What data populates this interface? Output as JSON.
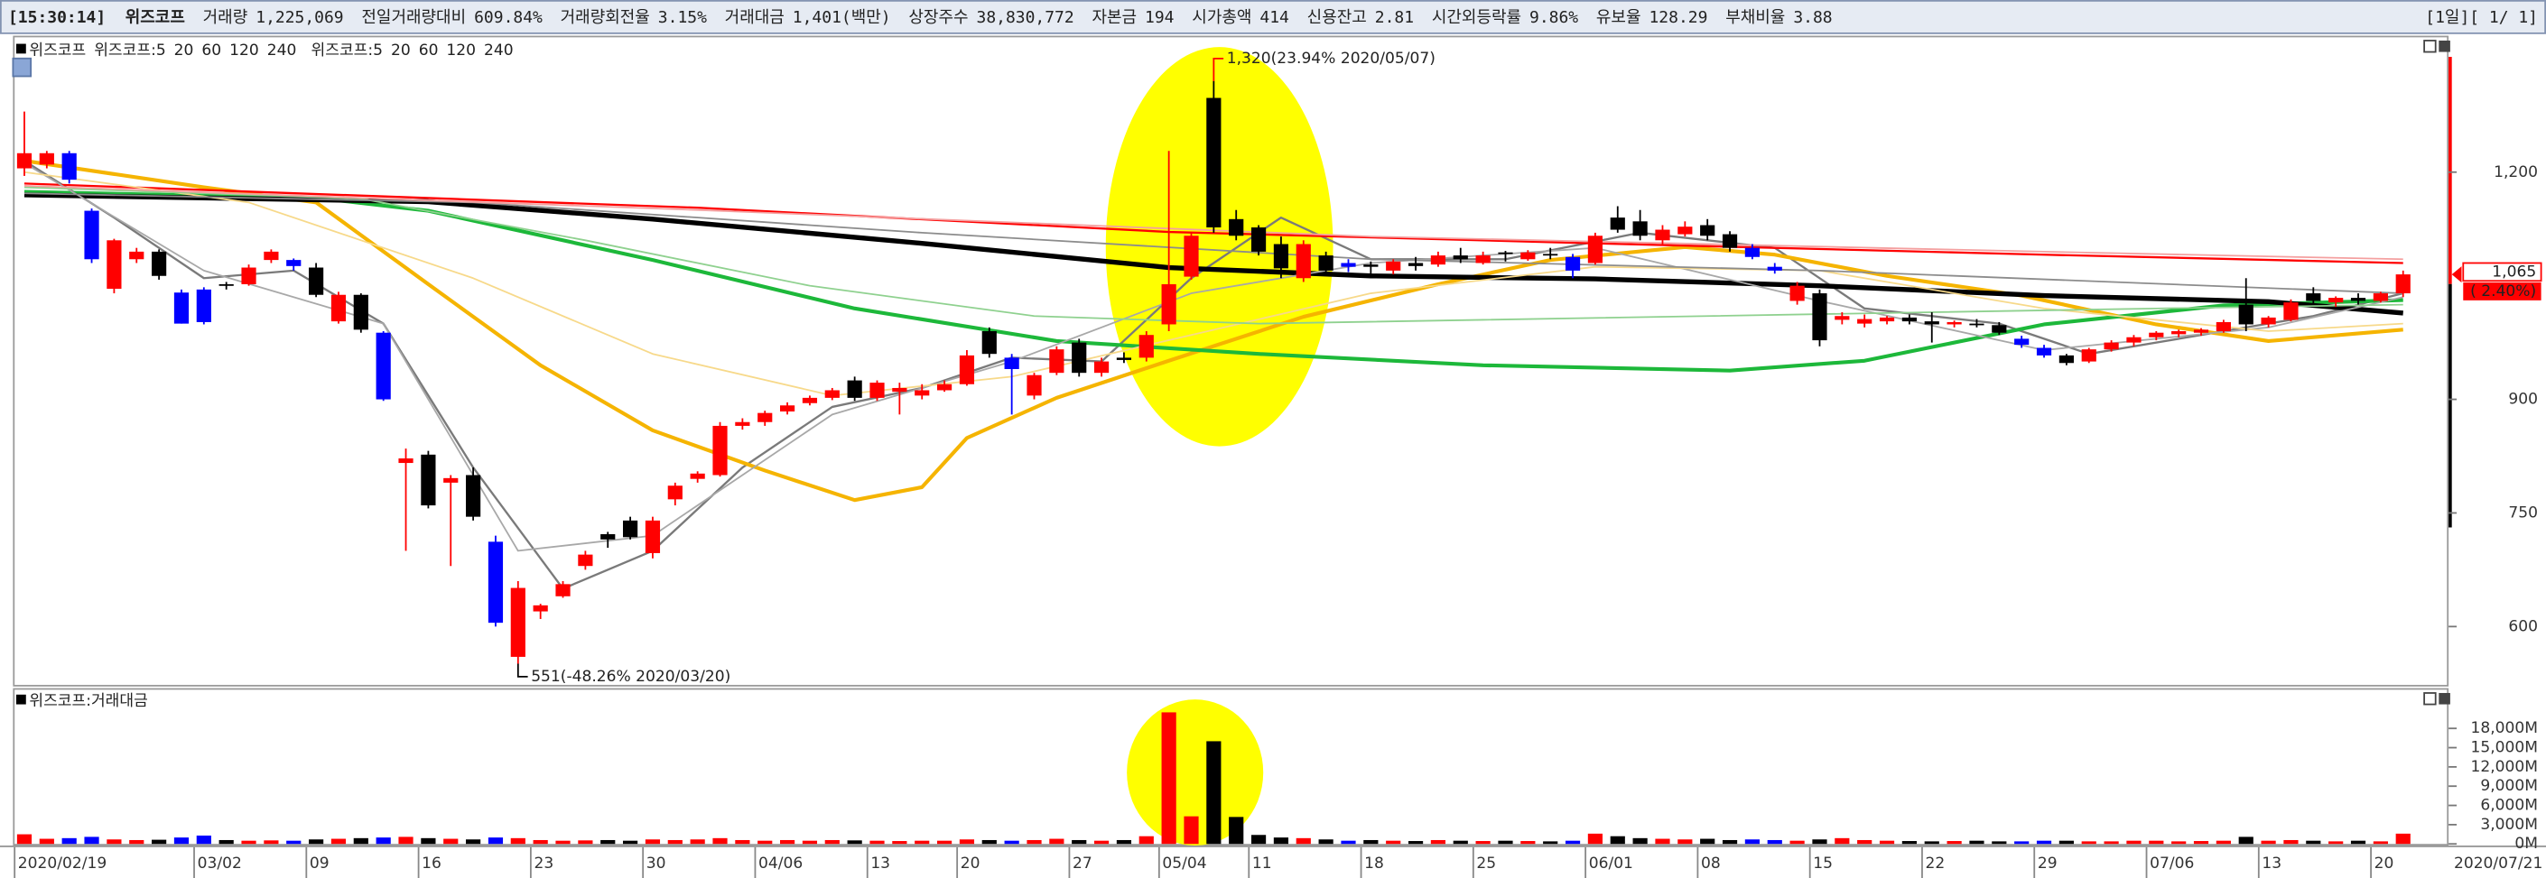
{
  "header": {
    "time": "[15:30:14]",
    "name": "위즈코프",
    "page": "[1일][ 1/ 1]",
    "items": [
      {
        "label": "거래량",
        "value": "1,225,069"
      },
      {
        "label": "전일거래량대비",
        "value": "609.84%"
      },
      {
        "label": "거래량회전율",
        "value": "3.15%"
      },
      {
        "label": "거래대금",
        "value": "1,401(백만)"
      },
      {
        "label": "상장주수",
        "value": "38,830,772"
      },
      {
        "label": "자본금",
        "value": "194"
      },
      {
        "label": "시가총액",
        "value": "414"
      },
      {
        "label": "신용잔고",
        "value": "2.81"
      },
      {
        "label": "시간외등락률",
        "value": "9.86%"
      },
      {
        "label": "유보율",
        "value": "128.29"
      },
      {
        "label": "부채비율",
        "value": "3.88"
      }
    ]
  },
  "chart_data": [
    {
      "type": "candlestick",
      "name": "위즈코프",
      "categories": [
        "2020/02/19",
        null,
        null,
        null,
        null,
        null,
        null,
        null,
        "03/02",
        null,
        null,
        null,
        null,
        "09",
        null,
        null,
        null,
        null,
        "16",
        null,
        null,
        null,
        null,
        "23",
        null,
        null,
        null,
        null,
        "30",
        null,
        null,
        null,
        null,
        "04/06",
        null,
        null,
        null,
        null,
        "13",
        null,
        null,
        null,
        "20",
        null,
        null,
        null,
        null,
        "27",
        null,
        null,
        null,
        "05/04",
        null,
        null,
        null,
        "11",
        null,
        null,
        null,
        null,
        "18",
        null,
        null,
        null,
        null,
        "25",
        null,
        null,
        null,
        null,
        "06/01",
        null,
        null,
        null,
        null,
        "08",
        null,
        null,
        null,
        null,
        "15",
        null,
        null,
        null,
        null,
        "22",
        null,
        null,
        null,
        null,
        "29",
        null,
        null,
        null,
        null,
        "07/06",
        null,
        null,
        null,
        null,
        "13",
        null,
        null,
        null,
        null,
        "20",
        "2020/07/21"
      ],
      "open": [
        1205,
        1210,
        1225,
        1149,
        1046,
        1085,
        1095,
        1041,
        1045,
        1052,
        1052,
        1084,
        1084,
        1074,
        1003,
        1038,
        988,
        816,
        827,
        790,
        800,
        712,
        560,
        620,
        640,
        680,
        722,
        740,
        697,
        768,
        795,
        800,
        865,
        870,
        884,
        895,
        902,
        925,
        902,
        910,
        905,
        912,
        920,
        990,
        955,
        905,
        935,
        975,
        935,
        955,
        955,
        999,
        1062,
        1298,
        1138,
        1127,
        1105,
        1060,
        1090,
        1080,
        1078,
        1070,
        1080,
        1078,
        1090,
        1080,
        1094,
        1085,
        1092,
        1088,
        1080,
        1140,
        1135,
        1110,
        1118,
        1130,
        1118,
        1100,
        1075,
        1030,
        1040,
        1005,
        1000,
        1003,
        1008,
        1003,
        999,
        1000,
        998,
        980,
        968,
        958,
        950,
        966,
        975,
        982,
        986,
        988,
        990,
        1025,
        999,
        1005,
        1040,
        1028,
        1034,
        1030,
        1040
      ],
      "high": [
        1280,
        1228,
        1228,
        1152,
        1112,
        1100,
        1098,
        1045,
        1048,
        1055,
        1078,
        1098,
        1086,
        1080,
        1042,
        1040,
        990,
        835,
        832,
        800,
        810,
        720,
        660,
        630,
        660,
        700,
        725,
        745,
        745,
        790,
        805,
        870,
        875,
        885,
        896,
        905,
        915,
        930,
        925,
        922,
        920,
        925,
        965,
        995,
        960,
        935,
        970,
        980,
        955,
        962,
        990,
        1228,
        1120,
        1320,
        1150,
        1130,
        1115,
        1110,
        1095,
        1085,
        1082,
        1085,
        1088,
        1095,
        1100,
        1095,
        1096,
        1097,
        1100,
        1092,
        1120,
        1155,
        1150,
        1130,
        1135,
        1138,
        1122,
        1105,
        1080,
        1055,
        1045,
        1015,
        1012,
        1010,
        1012,
        1015,
        1004,
        1006,
        1002,
        984,
        972,
        960,
        968,
        978,
        985,
        990,
        992,
        994,
        1005,
        1060,
        1010,
        1032,
        1048,
        1036,
        1040,
        1042,
        1070
      ],
      "low": [
        1195,
        1205,
        1185,
        1080,
        1040,
        1080,
        1058,
        1000,
        999,
        1045,
        1050,
        1080,
        1070,
        1035,
        1000,
        988,
        898,
        700,
        756,
        680,
        740,
        600,
        551,
        610,
        638,
        675,
        704,
        715,
        690,
        760,
        790,
        798,
        860,
        865,
        880,
        892,
        899,
        898,
        898,
        880,
        900,
        910,
        918,
        955,
        880,
        900,
        932,
        930,
        930,
        948,
        950,
        990,
        1058,
        1120,
        1110,
        1090,
        1060,
        1055,
        1065,
        1068,
        1060,
        1065,
        1070,
        1075,
        1080,
        1078,
        1082,
        1083,
        1085,
        1060,
        1078,
        1120,
        1110,
        1105,
        1115,
        1110,
        1095,
        1085,
        1066,
        1025,
        970,
        999,
        995,
        999,
        999,
        975,
        995,
        995,
        985,
        968,
        955,
        945,
        948,
        963,
        970,
        978,
        982,
        984,
        988,
        990,
        995,
        1003,
        1025,
        1022,
        1025,
        1028,
        1035
      ],
      "close": [
        1225,
        1225,
        1190,
        1085,
        1110,
        1095,
        1063,
        1000,
        1002,
        1050,
        1074,
        1095,
        1076,
        1038,
        1038,
        992,
        900,
        822,
        760,
        796,
        745,
        605,
        651,
        628,
        656,
        695,
        715,
        718,
        740,
        786,
        802,
        865,
        870,
        882,
        892,
        902,
        912,
        902,
        922,
        915,
        912,
        920,
        958,
        960,
        940,
        932,
        966,
        935,
        950,
        952,
        985,
        1052,
        1116,
        1127,
        1116,
        1095,
        1073,
        1105,
        1070,
        1075,
        1075,
        1082,
        1076,
        1090,
        1085,
        1090,
        1092,
        1094,
        1090,
        1070,
        1116,
        1124,
        1116,
        1124,
        1128,
        1116,
        1100,
        1088,
        1070,
        1050,
        978,
        1010,
        1006,
        1008,
        1003,
        999,
        1002,
        999,
        988,
        972,
        958,
        948,
        966,
        975,
        982,
        988,
        990,
        992,
        1002,
        999,
        1008,
        1028,
        1030,
        1034,
        1030,
        1040,
        1065
      ],
      "candle_colors": [
        "#ff0000",
        "#ff0000",
        "#0000ff",
        "#0000ff",
        "#ff0000",
        "#ff0000",
        "#000000",
        "#0000ff",
        "#0000ff",
        "#000000",
        "#ff0000",
        "#ff0000",
        "#0000ff",
        "#000000",
        "#ff0000",
        "#000000",
        "#0000ff",
        "#ff0000",
        "#000000",
        "#ff0000",
        "#000000",
        "#0000ff",
        "#ff0000",
        "#ff0000",
        "#ff0000",
        "#ff0000",
        "#000000",
        "#000000",
        "#ff0000",
        "#ff0000",
        "#ff0000",
        "#ff0000",
        "#ff0000",
        "#ff0000",
        "#ff0000",
        "#ff0000",
        "#ff0000",
        "#000000",
        "#ff0000",
        "#ff0000",
        "#ff0000",
        "#ff0000",
        "#ff0000",
        "#000000",
        "#0000ff",
        "#ff0000",
        "#ff0000",
        "#000000",
        "#ff0000",
        "#000000",
        "#ff0000",
        "#ff0000",
        "#ff0000",
        "#000000",
        "#000000",
        "#000000",
        "#000000",
        "#ff0000",
        "#000000",
        "#0000ff",
        "#000000",
        "#ff0000",
        "#000000",
        "#ff0000",
        "#000000",
        "#ff0000",
        "#000000",
        "#ff0000",
        "#000000",
        "#0000ff",
        "#ff0000",
        "#000000",
        "#000000",
        "#ff0000",
        "#ff0000",
        "#000000",
        "#000000",
        "#0000ff",
        "#0000ff",
        "#ff0000",
        "#000000",
        "#ff0000",
        "#ff0000",
        "#ff0000",
        "#000000",
        "#000000",
        "#ff0000",
        "#000000",
        "#000000",
        "#0000ff",
        "#0000ff",
        "#000000",
        "#ff0000",
        "#ff0000",
        "#ff0000",
        "#ff0000",
        "#ff0000",
        "#ff0000",
        "#ff0000",
        "#000000",
        "#ff0000",
        "#ff0000",
        "#000000",
        "#ff0000",
        "#000000",
        "#ff0000",
        "#ff0000"
      ],
      "series": [
        {
          "name": "위즈코프:5",
          "color": "#7a7a7a",
          "x": [
            0,
            4,
            8,
            12,
            16,
            20,
            24,
            28,
            32,
            36,
            40,
            44,
            48,
            52,
            56,
            60,
            66,
            72,
            78,
            82,
            88,
            92,
            98,
            102,
            106
          ],
          "values": [
            1215,
            1140,
            1060,
            1070,
            1000,
            810,
            650,
            700,
            810,
            890,
            915,
            955,
            950,
            1060,
            1140,
            1085,
            1085,
            1120,
            1100,
            1020,
            1000,
            960,
            990,
            1010,
            1040
          ]
        },
        {
          "name": "20",
          "color": "#f5b400",
          "x": [
            0,
            8,
            13,
            18,
            23,
            28,
            33,
            37,
            40,
            42,
            46,
            51,
            57,
            63,
            68,
            74,
            78,
            83,
            89,
            95,
            100,
            106
          ],
          "values": [
            1215,
            1180,
            1160,
            1052,
            945,
            859,
            806,
            767,
            784,
            849,
            902,
            951,
            1009,
            1052,
            1084,
            1101,
            1091,
            1063,
            1037,
            999,
            977,
            992
          ]
        },
        {
          "name": "60",
          "color": "#1db83a",
          "x": [
            0,
            13,
            18,
            28,
            37,
            46,
            55,
            65,
            76,
            82,
            90,
            98,
            106
          ],
          "values": [
            1174,
            1166,
            1149,
            1084,
            1020,
            977,
            960,
            945,
            938,
            951,
            999,
            1024,
            1031
          ]
        },
        {
          "name": "120",
          "color": "#000000",
          "x": [
            0,
            18,
            28,
            40,
            51,
            60,
            70,
            80,
            90,
            100,
            106
          ],
          "values": [
            1170,
            1161,
            1138,
            1106,
            1074,
            1063,
            1059,
            1050,
            1037,
            1029,
            1014
          ]
        },
        {
          "name": "240",
          "color": "#ff0000",
          "x": [
            0,
            30,
            51,
            70,
            90,
            106
          ],
          "values": [
            1185,
            1153,
            1121,
            1106,
            1091,
            1080
          ]
        },
        {
          "name": "위즈코프:5",
          "color": "#a8a8a8",
          "x": [
            0,
            8,
            16,
            22,
            28,
            36,
            44,
            52,
            60,
            70,
            80,
            90,
            100,
            106
          ],
          "values": [
            1212,
            1070,
            1000,
            700,
            720,
            880,
            950,
            1040,
            1080,
            1100,
            1030,
            965,
            995,
            1035
          ]
        },
        {
          "name": "20",
          "color": "#f7d98a",
          "x": [
            0,
            10,
            20,
            28,
            36,
            44,
            52,
            60,
            70,
            80,
            90,
            100,
            106
          ],
          "values": [
            1200,
            1160,
            1060,
            960,
            905,
            930,
            985,
            1040,
            1075,
            1070,
            1020,
            990,
            1000
          ]
        },
        {
          "name": "60",
          "color": "#8fd18f",
          "x": [
            0,
            15,
            25,
            35,
            45,
            55,
            65,
            75,
            85,
            95,
            106
          ],
          "values": [
            1180,
            1165,
            1110,
            1050,
            1010,
            1000,
            1005,
            1010,
            1015,
            1020,
            1025
          ]
        },
        {
          "name": "120",
          "color": "#8c8c8c",
          "x": [
            0,
            20,
            40,
            60,
            80,
            106
          ],
          "values": [
            1172,
            1160,
            1120,
            1085,
            1070,
            1040
          ]
        },
        {
          "name": "240",
          "color": "#f4a0a0",
          "x": [
            0,
            30,
            60,
            90,
            106
          ],
          "values": [
            1182,
            1150,
            1115,
            1095,
            1085
          ]
        }
      ],
      "ylim": [
        523,
        1363
      ],
      "yticks": [
        {
          "value": 1200,
          "label": "1,200"
        },
        900,
        750,
        600
      ],
      "grid": false,
      "annotations": {
        "high": "1,320(23.94% 2020/05/07)",
        "low": "551(-48.26% 2020/03/20)"
      },
      "last_price": {
        "value": 1065,
        "label": "1,065"
      },
      "change_label": "( 2.40%)"
    },
    {
      "type": "bar",
      "title": "위즈코프:거래대금",
      "values": [
        1500,
        800,
        900,
        1100,
        700,
        600,
        650,
        1000,
        1300,
        600,
        500,
        550,
        500,
        700,
        800,
        900,
        1000,
        1100,
        900,
        800,
        700,
        1000,
        900,
        600,
        500,
        550,
        600,
        500,
        700,
        600,
        700,
        900,
        600,
        500,
        600,
        500,
        600,
        550,
        500,
        450,
        500,
        500,
        700,
        600,
        500,
        600,
        800,
        600,
        500,
        600,
        1200,
        20500,
        4300,
        16000,
        4200,
        1400,
        1000,
        900,
        700,
        500,
        600,
        500,
        450,
        600,
        500,
        450,
        500,
        450,
        400,
        500,
        1600,
        1200,
        900,
        800,
        700,
        800,
        600,
        700,
        600,
        500,
        700,
        900,
        600,
        500,
        450,
        400,
        450,
        500,
        400,
        400,
        500,
        500,
        400,
        400,
        500,
        500,
        400,
        450,
        500,
        1100,
        500,
        600,
        500,
        400,
        500,
        400,
        1600
      ],
      "ylim": [
        0,
        22000
      ],
      "yticks": [
        {
          "value": 0,
          "label": "0M"
        },
        {
          "value": 3000,
          "label": "3,000M"
        },
        {
          "value": 6000,
          "label": "6,000M"
        },
        {
          "value": 9000,
          "label": "9,000M"
        },
        {
          "value": 12000,
          "label": "12,000M"
        },
        {
          "value": 15000,
          "label": "15,000M"
        },
        {
          "value": 18000,
          "label": "18,000M"
        }
      ],
      "grid": false
    }
  ]
}
